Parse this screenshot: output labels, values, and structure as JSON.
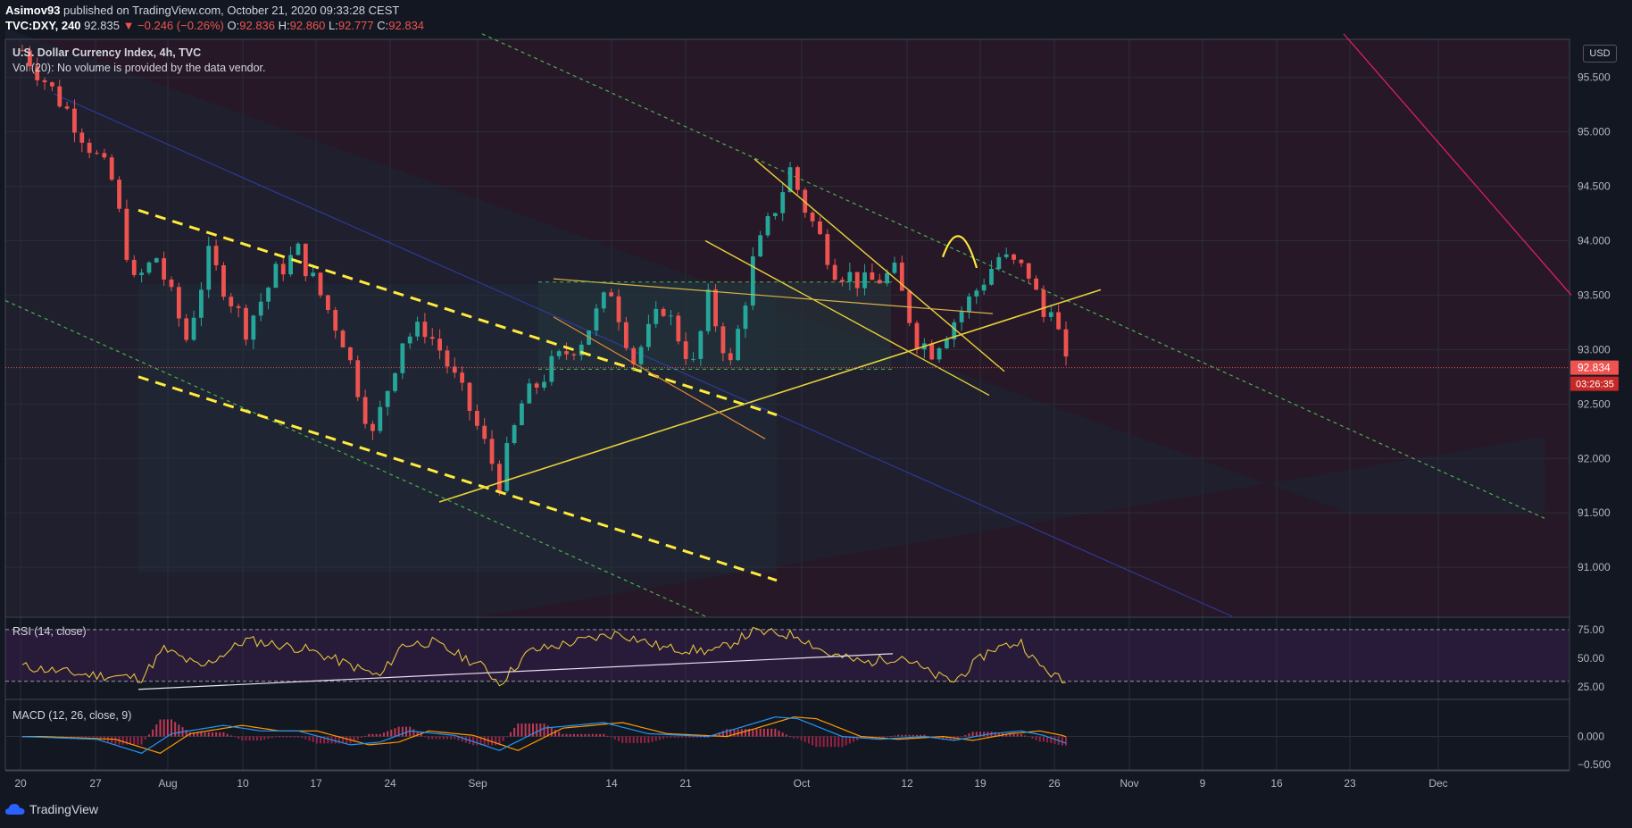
{
  "header": {
    "publisher": "Asimov93",
    "published_text": "published on TradingView.com, October 21, 2020 09:33:28 CEST",
    "symbol": "TVC:DXY, 240",
    "last": "92.835",
    "change": "▼ −0.246 (−0.26%)",
    "o_label": "O:",
    "o_value": "92.836",
    "h_label": "H:",
    "h_value": "92.860",
    "l_label": "L:",
    "l_value": "92.777",
    "c_label": "C:",
    "c_value": "92.834"
  },
  "main_pane": {
    "title": "U.S. Dollar Currency Index, 4h, TVC",
    "volume_note": "Vol (20): No volume is provided by the data vendor.",
    "currency_button": "USD",
    "price_badge": "92.834",
    "countdown_badge": "03:26:35"
  },
  "rsi_pane": {
    "title": "RSI (14, close)"
  },
  "macd_pane": {
    "title": "MACD (12, 26, close, 9)"
  },
  "footer": {
    "brand": "TradingView"
  },
  "colors": {
    "background": "#131722",
    "up_candle": "#26a69a",
    "down_candle": "#ef5350",
    "trend_yellow": "#ffeb3b",
    "channel_green": "#4caf50",
    "rsi_line": "#e3c33b",
    "macd_line": "#2196f3",
    "signal_line": "#ff9800"
  },
  "chart_data": [
    {
      "type": "line",
      "name": "candlestick",
      "x_ticks": [
        "20",
        "27",
        "Aug",
        "10",
        "17",
        "24",
        "Sep",
        "14",
        "21",
        "Oct",
        "12",
        "19",
        "26",
        "Nov",
        "9",
        "16",
        "23",
        "Dec"
      ],
      "price_ticks": [
        "95.500",
        "95.000",
        "94.500",
        "94.000",
        "93.500",
        "93.000",
        "92.500",
        "92.000",
        "91.500",
        "91.000"
      ],
      "ylim": [
        90.55,
        95.85
      ],
      "close_path": [
        [
          0,
          95.75
        ],
        [
          6,
          95.2
        ],
        [
          12,
          94.55
        ],
        [
          15,
          93.6
        ],
        [
          18,
          93.85
        ],
        [
          22,
          93.1
        ],
        [
          25,
          93.85
        ],
        [
          30,
          93.2
        ],
        [
          34,
          93.7
        ],
        [
          37,
          93.9
        ],
        [
          43,
          93.1
        ],
        [
          47,
          92.2
        ],
        [
          51,
          93.1
        ],
        [
          54,
          93.2
        ],
        [
          56,
          93.0
        ],
        [
          60,
          92.45
        ],
        [
          64,
          91.8
        ],
        [
          67,
          92.5
        ],
        [
          71,
          92.85
        ],
        [
          75,
          93.1
        ],
        [
          79,
          93.55
        ],
        [
          82,
          92.9
        ],
        [
          86,
          93.4
        ],
        [
          90,
          92.85
        ],
        [
          92,
          93.45
        ],
        [
          95,
          92.85
        ],
        [
          98,
          93.8
        ],
        [
          103,
          94.65
        ],
        [
          105,
          94.3
        ],
        [
          109,
          93.75
        ],
        [
          113,
          93.6
        ],
        [
          117,
          93.7
        ],
        [
          120,
          93.1
        ],
        [
          122,
          93.0
        ],
        [
          127,
          93.45
        ],
        [
          131,
          93.85
        ],
        [
          135,
          93.7
        ],
        [
          137,
          93.3
        ],
        [
          138,
          93.45
        ],
        [
          140,
          92.834
        ]
      ],
      "annotations": [
        "descending channel",
        "rising trendline",
        "falling wedge",
        "arc at local top"
      ]
    },
    {
      "type": "line",
      "name": "RSI",
      "levels": [
        "75.00",
        "50.00",
        "25.00"
      ],
      "ylim": [
        15,
        85
      ],
      "path": [
        [
          0,
          43
        ],
        [
          8,
          36
        ],
        [
          16,
          33
        ],
        [
          19,
          58
        ],
        [
          24,
          42
        ],
        [
          30,
          66
        ],
        [
          38,
          58
        ],
        [
          44,
          44
        ],
        [
          48,
          34
        ],
        [
          51,
          62
        ],
        [
          55,
          64
        ],
        [
          62,
          42
        ],
        [
          64,
          28
        ],
        [
          68,
          56
        ],
        [
          74,
          64
        ],
        [
          80,
          72
        ],
        [
          86,
          59
        ],
        [
          93,
          56
        ],
        [
          98,
          73
        ],
        [
          104,
          70
        ],
        [
          108,
          54
        ],
        [
          113,
          46
        ],
        [
          118,
          52
        ],
        [
          122,
          36
        ],
        [
          125,
          30
        ],
        [
          130,
          58
        ],
        [
          134,
          64
        ],
        [
          136,
          46
        ],
        [
          140,
          28
        ]
      ]
    },
    {
      "type": "line",
      "name": "MACD",
      "levels": [
        "0.000",
        "−0.500"
      ],
      "ylim": [
        -0.6,
        0.65
      ],
      "path": [
        [
          0,
          0.0
        ],
        [
          10,
          -0.05
        ],
        [
          16,
          -0.3
        ],
        [
          20,
          0.05
        ],
        [
          27,
          0.2
        ],
        [
          32,
          0.1
        ],
        [
          37,
          0.1
        ],
        [
          44,
          -0.15
        ],
        [
          48,
          -0.1
        ],
        [
          52,
          0.1
        ],
        [
          58,
          0.02
        ],
        [
          64,
          -0.25
        ],
        [
          70,
          0.15
        ],
        [
          78,
          0.25
        ],
        [
          84,
          0.05
        ],
        [
          92,
          0.0
        ],
        [
          96,
          0.15
        ],
        [
          101,
          0.35
        ],
        [
          104,
          0.32
        ],
        [
          110,
          0.0
        ],
        [
          115,
          -0.05
        ],
        [
          121,
          0.0
        ],
        [
          125,
          -0.07
        ],
        [
          130,
          0.05
        ],
        [
          134,
          0.1
        ],
        [
          137,
          0.02
        ],
        [
          140,
          -0.12
        ]
      ]
    }
  ]
}
